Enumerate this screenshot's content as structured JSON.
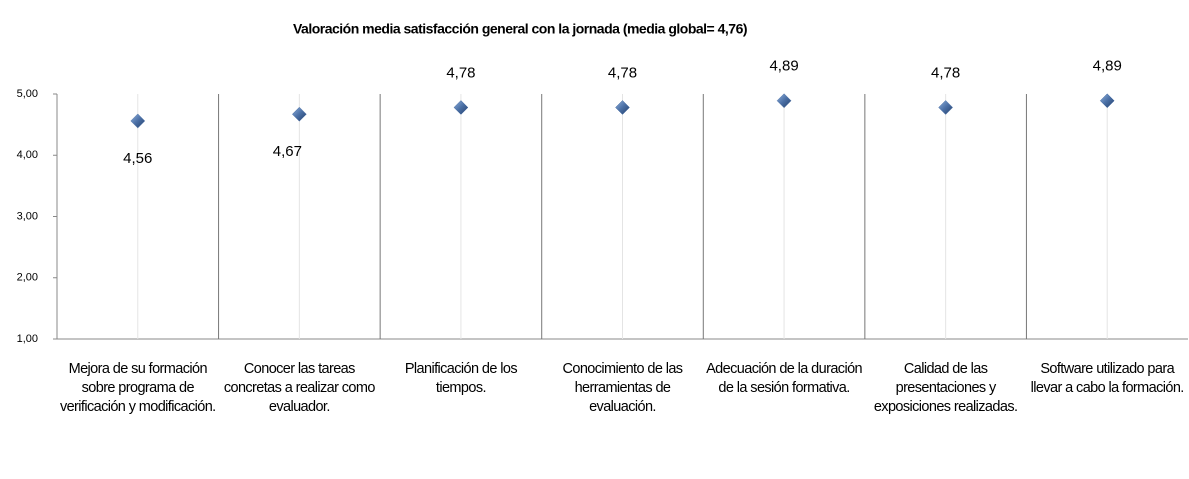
{
  "chart_data": {
    "type": "dot",
    "title": "Valoración media satisfacción general con la jornada (media global= 4,76)",
    "categories": [
      "Mejora de su formación sobre programa de verificación y modificación.",
      "Conocer las tareas concretas a realizar como evaluador.",
      "Planificación de los tiempos.",
      "Conocimiento de las herramientas de evaluación.",
      "Adecuación de la duración de la sesión formativa.",
      "Calidad de las presentaciones y exposiciones realizadas.",
      "Software utilizado para llevar a cabo la formación."
    ],
    "values": [
      4.56,
      4.67,
      4.78,
      4.78,
      4.89,
      4.78,
      4.89
    ],
    "value_labels": [
      "4,56",
      "4,67",
      "4,78",
      "4,78",
      "4,89",
      "4,78",
      "4,89"
    ],
    "color": "#4a6fa5",
    "ylim": [
      1,
      5
    ],
    "yticks": [
      {
        "value": 1,
        "label": "1,00"
      },
      {
        "value": 2,
        "label": "2,00"
      },
      {
        "value": 3,
        "label": "3,00"
      },
      {
        "value": 4,
        "label": "4,00"
      },
      {
        "value": 5,
        "label": "5,00"
      }
    ],
    "grid": true
  }
}
